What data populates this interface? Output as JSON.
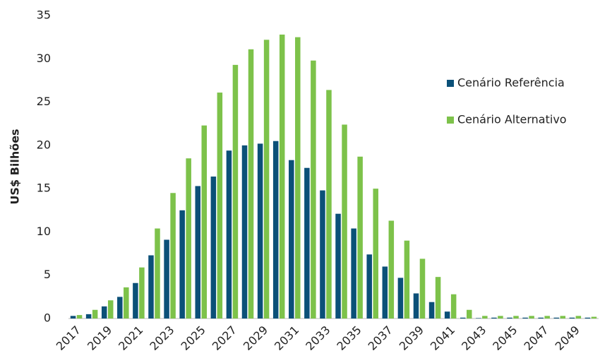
{
  "chart_data": {
    "type": "bar",
    "ylabel": "US$ Bilhões",
    "categories": [
      "2017",
      null,
      "2019",
      null,
      "2021",
      null,
      "2023",
      null,
      "2025",
      null,
      "2027",
      null,
      "2029",
      null,
      "2031",
      null,
      "2033",
      null,
      "2035",
      null,
      "2037",
      null,
      "2039",
      null,
      "2041",
      null,
      "2043",
      null,
      "2045",
      null,
      "2047",
      null,
      "2049",
      null
    ],
    "series": [
      {
        "name": "Cenário Referência",
        "color": "#0b5078",
        "values": [
          0.3,
          0.5,
          1.4,
          2.5,
          4.1,
          7.3,
          9.1,
          12.5,
          15.3,
          16.4,
          19.4,
          20.0,
          20.2,
          20.5,
          18.3,
          17.4,
          14.8,
          12.1,
          10.4,
          7.4,
          6.0,
          4.7,
          2.9,
          1.9,
          0.8,
          0.1,
          0.05,
          0.1,
          0.1,
          0.1,
          0.1,
          0.1,
          0.1,
          0.1
        ]
      },
      {
        "name": "Cenário Alternativo",
        "color": "#7dc24a",
        "values": [
          0.4,
          1.0,
          2.1,
          3.6,
          5.9,
          10.4,
          14.5,
          18.5,
          22.3,
          26.1,
          29.3,
          31.1,
          32.2,
          32.8,
          32.5,
          29.8,
          26.4,
          22.4,
          18.7,
          15.0,
          11.3,
          9.0,
          6.9,
          4.8,
          2.8,
          1.0,
          0.3,
          0.3,
          0.3,
          0.3,
          0.3,
          0.3,
          0.3,
          0.2
        ]
      }
    ],
    "ylim": [
      0,
      35
    ],
    "yticks": [
      0,
      5,
      10,
      15,
      20,
      25,
      30,
      35
    ],
    "grid": false,
    "legend": "right"
  }
}
